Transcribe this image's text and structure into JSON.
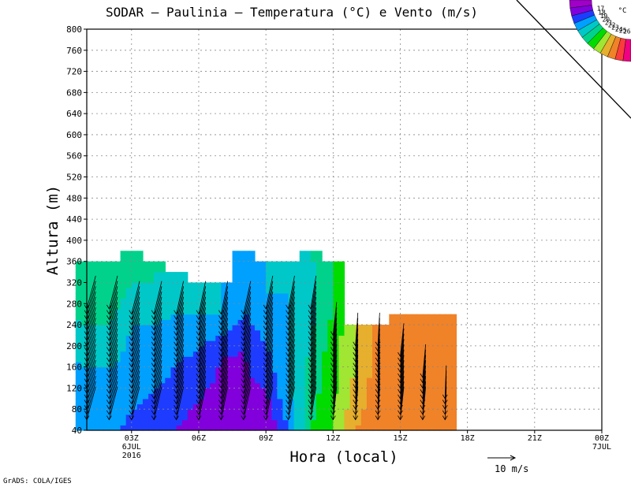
{
  "chart_data": {
    "type": "heatmap",
    "title": "SODAR – Paulinia – Temperatura (°C) e Vento (m/s)",
    "xlabel": "Hora (local)",
    "ylabel": "Altura (m)",
    "ylim": [
      40,
      800
    ],
    "y_ticks": [
      40,
      80,
      120,
      160,
      200,
      240,
      280,
      320,
      360,
      400,
      440,
      480,
      520,
      560,
      600,
      640,
      680,
      720,
      760,
      800
    ],
    "x_ticks": [
      {
        "label": "03Z",
        "sub1": "6JUL",
        "sub2": "2016"
      },
      {
        "label": "06Z",
        "sub1": "",
        "sub2": ""
      },
      {
        "label": "09Z",
        "sub1": "",
        "sub2": ""
      },
      {
        "label": "12Z",
        "sub1": "",
        "sub2": ""
      },
      {
        "label": "15Z",
        "sub1": "",
        "sub2": ""
      },
      {
        "label": "18Z",
        "sub1": "",
        "sub2": ""
      },
      {
        "label": "21Z",
        "sub1": "",
        "sub2": ""
      },
      {
        "label": "00Z",
        "sub1": "7JUL",
        "sub2": ""
      }
    ],
    "x_range_hours": [
      1,
      24
    ],
    "grid": true,
    "colorbar": {
      "unit": "°C",
      "levels": [
        "17",
        "18",
        "19",
        "20",
        "21",
        "22",
        "23",
        "24",
        "25",
        "26"
      ],
      "colors": [
        "#a000c8",
        "#8200dc",
        "#1e3cff",
        "#00a0ff",
        "#00c8c8",
        "#00d28c",
        "#00dc00",
        "#a0e632",
        "#e6af2d",
        "#f08228",
        "#fa3c3c",
        "#f00082"
      ]
    },
    "temperature_profiles": [
      {
        "hour": 1,
        "top": 360,
        "temps": [
          [
            40,
            19.5
          ],
          [
            160,
            20
          ],
          [
            280,
            21.5
          ],
          [
            360,
            22
          ]
        ]
      },
      {
        "hour": 2,
        "top": 360,
        "temps": [
          [
            40,
            19.5
          ],
          [
            160,
            20
          ],
          [
            280,
            21.5
          ],
          [
            360,
            22
          ]
        ]
      },
      {
        "hour": 3,
        "top": 380,
        "temps": [
          [
            40,
            18.5
          ],
          [
            120,
            19.5
          ],
          [
            240,
            20
          ],
          [
            320,
            21
          ],
          [
            380,
            21
          ]
        ]
      },
      {
        "hour": 4,
        "top": 360,
        "temps": [
          [
            40,
            18.5
          ],
          [
            120,
            19
          ],
          [
            240,
            20
          ],
          [
            320,
            21
          ],
          [
            360,
            21
          ]
        ]
      },
      {
        "hour": 5,
        "top": 340,
        "temps": [
          [
            40,
            18
          ],
          [
            160,
            19
          ],
          [
            260,
            20
          ],
          [
            340,
            21
          ]
        ]
      },
      {
        "hour": 6,
        "top": 320,
        "temps": [
          [
            40,
            17.5
          ],
          [
            160,
            18.5
          ],
          [
            260,
            20
          ],
          [
            320,
            20
          ]
        ]
      },
      {
        "hour": 7,
        "top": 320,
        "temps": [
          [
            40,
            17.5
          ],
          [
            180,
            18
          ],
          [
            260,
            20
          ],
          [
            320,
            20
          ]
        ]
      },
      {
        "hour": 8,
        "top": 380,
        "temps": [
          [
            40,
            17.5
          ],
          [
            200,
            18
          ],
          [
            260,
            19
          ],
          [
            380,
            20
          ]
        ]
      },
      {
        "hour": 9,
        "top": 360,
        "temps": [
          [
            40,
            17
          ],
          [
            120,
            18
          ],
          [
            200,
            19
          ],
          [
            300,
            20
          ],
          [
            360,
            20
          ]
        ]
      },
      {
        "hour": 10,
        "top": 360,
        "temps": [
          [
            40,
            19
          ],
          [
            120,
            20
          ],
          [
            240,
            20
          ],
          [
            360,
            20
          ]
        ]
      },
      {
        "hour": 11,
        "top": 380,
        "temps": [
          [
            40,
            22
          ],
          [
            200,
            21
          ],
          [
            320,
            20.5
          ],
          [
            380,
            21
          ]
        ]
      },
      {
        "hour": 12,
        "top": 360,
        "temps": [
          [
            40,
            23
          ],
          [
            200,
            22.5
          ],
          [
            280,
            22
          ],
          [
            360,
            22
          ]
        ]
      },
      {
        "hour": 13,
        "top": 240,
        "temps": [
          [
            40,
            25
          ],
          [
            160,
            24
          ],
          [
            240,
            24
          ]
        ]
      },
      {
        "hour": 14,
        "top": 240,
        "temps": [
          [
            40,
            25.5
          ],
          [
            160,
            25.5
          ],
          [
            240,
            25.5
          ]
        ]
      },
      {
        "hour": 15,
        "top": 260,
        "temps": [
          [
            40,
            25.5
          ],
          [
            200,
            26
          ],
          [
            260,
            26
          ]
        ]
      },
      {
        "hour": 16,
        "top": 260,
        "temps": [
          [
            40,
            25.5
          ],
          [
            200,
            25.5
          ],
          [
            260,
            25.5
          ]
        ]
      },
      {
        "hour": 17,
        "top": 260,
        "temps": [
          [
            40,
            25.5
          ],
          [
            200,
            25.5
          ],
          [
            260,
            25
          ]
        ]
      }
    ],
    "wind_barbs": {
      "hours": [
        1,
        2,
        3,
        4,
        5,
        6,
        7,
        8,
        9,
        10,
        11,
        12,
        13,
        14,
        15,
        16,
        17
      ],
      "heights": [
        [
          60,
          270
        ],
        [
          60,
          270
        ],
        [
          60,
          260
        ],
        [
          60,
          260
        ],
        [
          60,
          260
        ],
        [
          60,
          260
        ],
        [
          60,
          260
        ],
        [
          60,
          260
        ],
        [
          60,
          270
        ],
        [
          60,
          270
        ],
        [
          60,
          270
        ],
        [
          60,
          220
        ],
        [
          60,
          200
        ],
        [
          60,
          200
        ],
        [
          60,
          180
        ],
        [
          60,
          140
        ],
        [
          60,
          100
        ]
      ]
    },
    "reference_vector": "10 m/s",
    "credit": "GrADS: COLA/IGES"
  }
}
